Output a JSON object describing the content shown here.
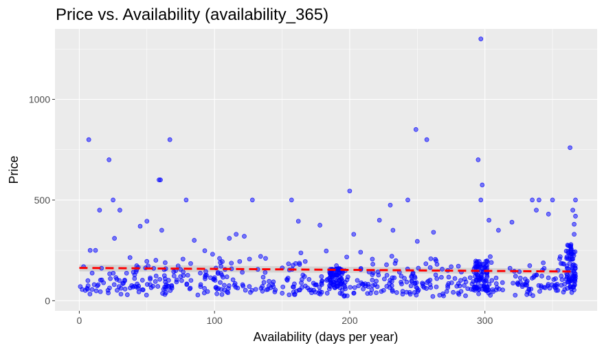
{
  "chart_data": {
    "type": "scatter",
    "title": "Price vs. Availability (availability_365)",
    "xlabel": "Availability (days per year)",
    "ylabel": "Price",
    "xlim": [
      -18,
      383
    ],
    "ylim": [
      -50,
      1350
    ],
    "x_ticks": [
      0,
      100,
      200,
      300
    ],
    "x_tick_labels": [
      "0",
      "100",
      "200",
      "300"
    ],
    "y_ticks": [
      0,
      500,
      1000
    ],
    "y_tick_labels": [
      "0",
      "500",
      "1000"
    ],
    "grid": true,
    "legend": "none",
    "colors": {
      "panel_background": "#ebebeb",
      "gridline": "#ffffff",
      "point_fill": "#0000ff",
      "trend_line": "#ff0000",
      "ribbon": "#bfbfbf"
    },
    "trend": {
      "type": "linear",
      "style": "dashed",
      "x": [
        0,
        365
      ],
      "y": [
        163,
        145
      ]
    },
    "outliers": [
      {
        "x": 7,
        "y": 800
      },
      {
        "x": 22,
        "y": 700
      },
      {
        "x": 15,
        "y": 450
      },
      {
        "x": 25,
        "y": 500
      },
      {
        "x": 30,
        "y": 450
      },
      {
        "x": 59,
        "y": 600
      },
      {
        "x": 60,
        "y": 600
      },
      {
        "x": 67,
        "y": 800
      },
      {
        "x": 79,
        "y": 500
      },
      {
        "x": 128,
        "y": 500
      },
      {
        "x": 157,
        "y": 500
      },
      {
        "x": 200,
        "y": 545
      },
      {
        "x": 230,
        "y": 475
      },
      {
        "x": 243,
        "y": 500
      },
      {
        "x": 249,
        "y": 850
      },
      {
        "x": 257,
        "y": 800
      },
      {
        "x": 295,
        "y": 700
      },
      {
        "x": 297,
        "y": 1300
      },
      {
        "x": 298,
        "y": 575
      },
      {
        "x": 297,
        "y": 500
      },
      {
        "x": 335,
        "y": 500
      },
      {
        "x": 340,
        "y": 500
      },
      {
        "x": 350,
        "y": 500
      },
      {
        "x": 363,
        "y": 760
      },
      {
        "x": 367,
        "y": 500
      },
      {
        "x": 45,
        "y": 370
      },
      {
        "x": 50,
        "y": 395
      },
      {
        "x": 162,
        "y": 395
      },
      {
        "x": 178,
        "y": 375
      },
      {
        "x": 222,
        "y": 400
      },
      {
        "x": 303,
        "y": 400
      },
      {
        "x": 320,
        "y": 390
      },
      {
        "x": 347,
        "y": 430
      },
      {
        "x": 338,
        "y": 450
      },
      {
        "x": 365,
        "y": 450
      },
      {
        "x": 367,
        "y": 420
      },
      {
        "x": 8,
        "y": 250
      },
      {
        "x": 12,
        "y": 250
      },
      {
        "x": 26,
        "y": 310
      },
      {
        "x": 61,
        "y": 350
      },
      {
        "x": 85,
        "y": 300
      },
      {
        "x": 111,
        "y": 310
      },
      {
        "x": 116,
        "y": 330
      },
      {
        "x": 122,
        "y": 320
      },
      {
        "x": 203,
        "y": 330
      },
      {
        "x": 232,
        "y": 350
      },
      {
        "x": 250,
        "y": 295
      },
      {
        "x": 262,
        "y": 340
      },
      {
        "x": 310,
        "y": 350
      },
      {
        "x": 366,
        "y": 380
      },
      {
        "x": 366,
        "y": 330
      }
    ],
    "bulk_points": {
      "x_range": [
        0,
        367
      ],
      "y_range": [
        20,
        280
      ],
      "dense_bands": [
        {
          "x_range": [
            185,
            195
          ],
          "y_range": [
            70,
            160
          ]
        },
        {
          "x_range": [
            292,
            302
          ],
          "y_range": [
            50,
            200
          ]
        },
        {
          "x_range": [
            360,
            367
          ],
          "y_range": [
            40,
            280
          ]
        }
      ]
    }
  }
}
